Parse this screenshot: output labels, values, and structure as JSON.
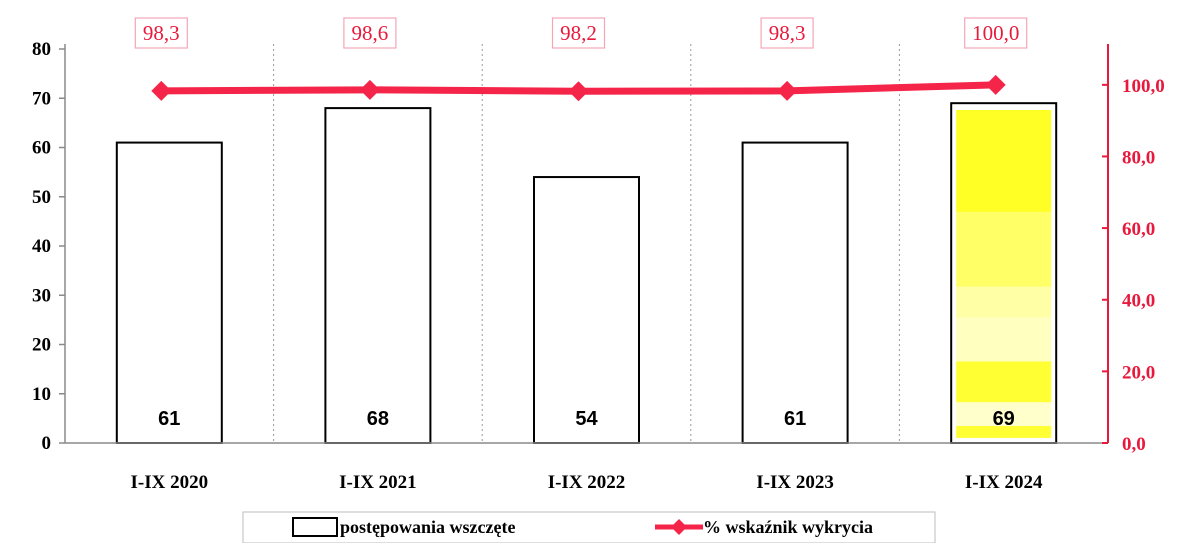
{
  "chart_data": {
    "type": "bar+line",
    "categories": [
      "I-IX 2020",
      "I-IX 2021",
      "I-IX 2022",
      "I-IX 2023",
      "I-IX 2024"
    ],
    "series": [
      {
        "name": "postępowania wszczęte",
        "type": "bar",
        "axis": "left",
        "values": [
          61,
          68,
          54,
          61,
          69
        ],
        "value_labels": [
          "61",
          "68",
          "54",
          "61",
          "69"
        ],
        "fill": "#ffffff",
        "stroke": "#000000",
        "highlight_index": 4,
        "highlight_color": "#ffff00"
      },
      {
        "name": "% wskaźnik wykrycia",
        "type": "line",
        "axis": "right",
        "values": [
          98.3,
          98.6,
          98.2,
          98.3,
          100.0
        ],
        "value_labels": [
          "98,3",
          "98,6",
          "98,2",
          "98,3",
          "100,0"
        ],
        "color": "#f5254a"
      }
    ],
    "y_left": {
      "range": [
        0,
        80
      ],
      "ticks": [
        0,
        10,
        20,
        30,
        40,
        50,
        60,
        70,
        80
      ]
    },
    "y_right": {
      "range": [
        0,
        110
      ],
      "ticks": [
        "0,0",
        "20,0",
        "40,0",
        "60,0",
        "80,0",
        "100,0"
      ],
      "tick_values": [
        0,
        20,
        40,
        60,
        80,
        100
      ],
      "color": "#e8193c"
    },
    "grid": {
      "vertical_dotted": true
    },
    "legend": {
      "position": "bottom"
    }
  }
}
